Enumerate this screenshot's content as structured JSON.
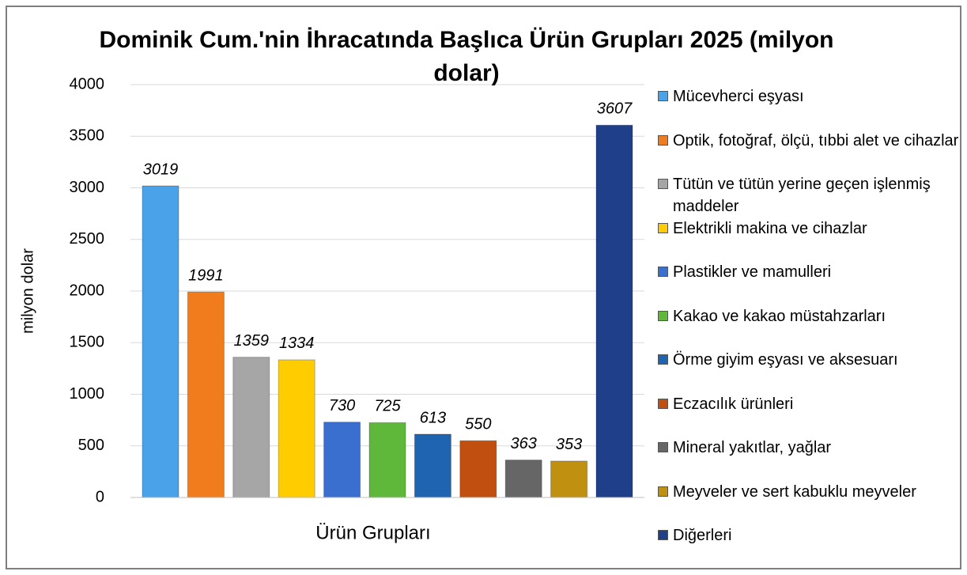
{
  "chart_data": {
    "type": "bar",
    "title": "Dominik Cum.'nin İhracatında Başlıca Ürün Grupları 2025 (milyon dolar)",
    "xlabel": "Ürün Grupları",
    "ylabel": "milyon dolar",
    "categories": [
      null
    ],
    "series": [
      {
        "name": "Mücevherci eşyası",
        "color": "#4aa3e8",
        "values": [
          3019
        ]
      },
      {
        "name": "Optik, fotoğraf, ölçü, tıbbi alet ve cihazlar",
        "color": "#f07c1e",
        "values": [
          1991
        ]
      },
      {
        "name": "Tütün ve tütün yerine geçen işlenmiş maddeler",
        "color": "#a6a6a6",
        "values": [
          1359
        ]
      },
      {
        "name": "Elektrikli makina ve cihazlar",
        "color": "#ffcc00",
        "values": [
          1334
        ]
      },
      {
        "name": "Plastikler ve mamulleri",
        "color": "#3a6fd0",
        "values": [
          730
        ]
      },
      {
        "name": "Kakao ve kakao müstahzarları",
        "color": "#5fb83a",
        "values": [
          725
        ]
      },
      {
        "name": "Örme giyim eşyası ve aksesuarı",
        "color": "#1f64b0",
        "values": [
          613
        ]
      },
      {
        "name": "Eczacılık ürünleri",
        "color": "#c04f10",
        "values": [
          550
        ]
      },
      {
        "name": "Mineral yakıtlar, yağlar",
        "color": "#666666",
        "values": [
          363
        ]
      },
      {
        "name": "Meyveler ve sert kabuklu meyveler",
        "color": "#c09010",
        "values": [
          353
        ]
      },
      {
        "name": "Diğerleri",
        "color": "#1f3f8a",
        "values": [
          3607
        ]
      }
    ],
    "ylim": [
      0,
      4000
    ],
    "yticks": [
      0,
      500,
      1000,
      1500,
      2000,
      2500,
      3000,
      3500,
      4000
    ],
    "grid": true,
    "legend": "right"
  }
}
